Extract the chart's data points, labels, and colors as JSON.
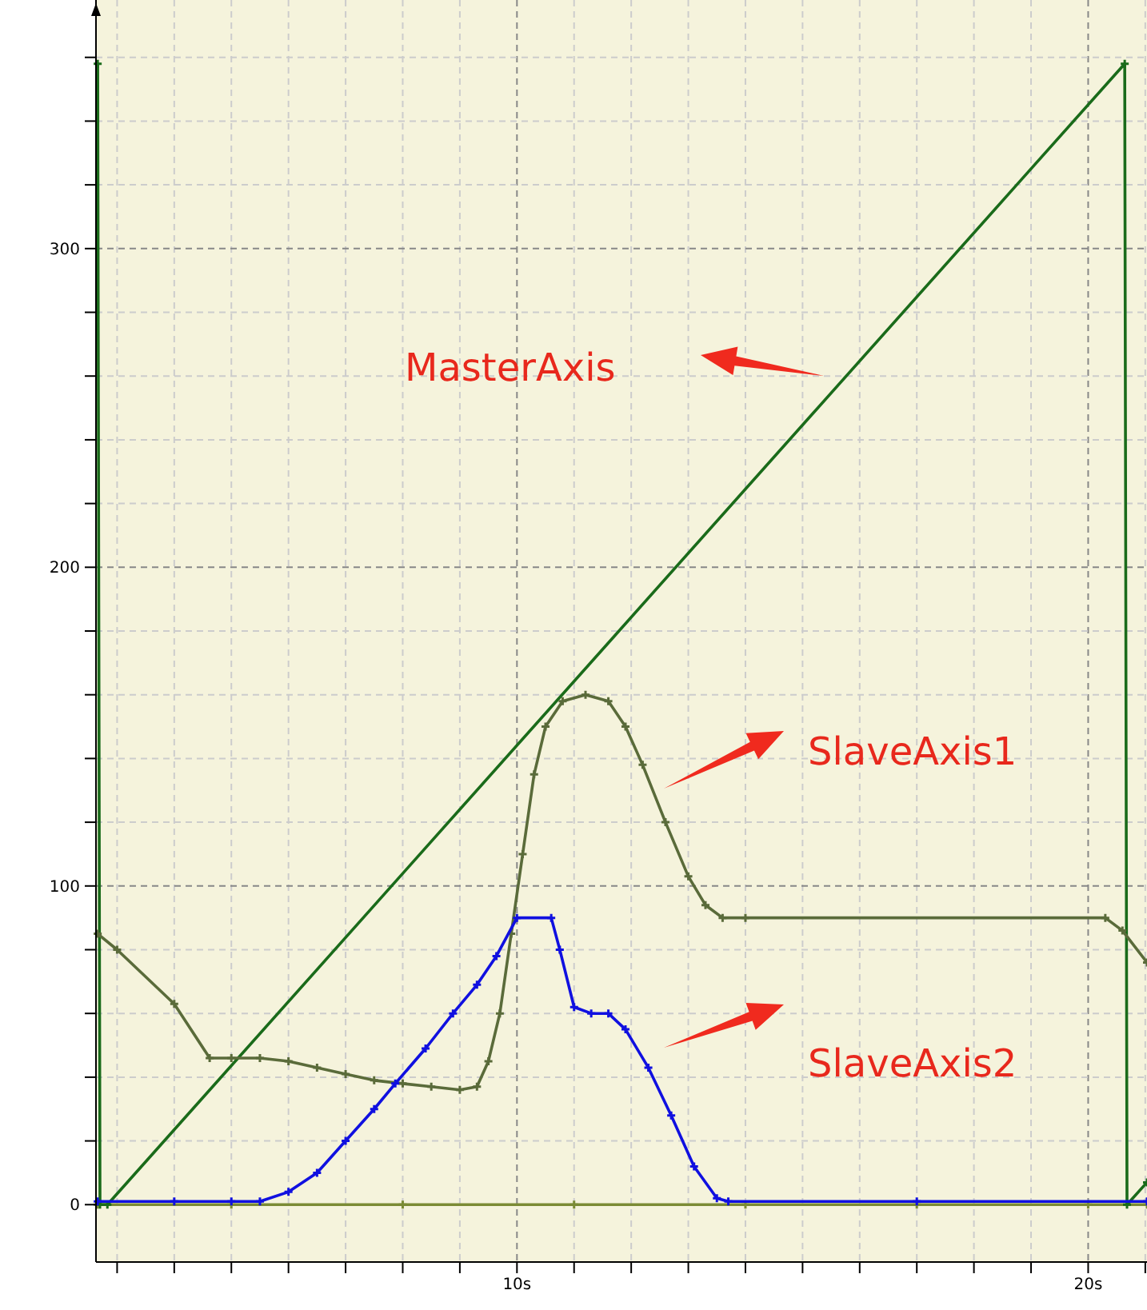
{
  "chart_data": {
    "type": "line",
    "xlim": [
      2.63,
      21.03
    ],
    "ylim": [
      -18,
      378
    ],
    "xticks": [
      {
        "value": 3,
        "label": null
      },
      {
        "value": 4,
        "label": null
      },
      {
        "value": 5,
        "label": null
      },
      {
        "value": 6,
        "label": null
      },
      {
        "value": 7,
        "label": null
      },
      {
        "value": 8,
        "label": null
      },
      {
        "value": 9,
        "label": null
      },
      {
        "value": 10,
        "label": "10s"
      },
      {
        "value": 11,
        "label": null
      },
      {
        "value": 12,
        "label": null
      },
      {
        "value": 13,
        "label": null
      },
      {
        "value": 14,
        "label": null
      },
      {
        "value": 15,
        "label": null
      },
      {
        "value": 16,
        "label": null
      },
      {
        "value": 17,
        "label": null
      },
      {
        "value": 18,
        "label": null
      },
      {
        "value": 19,
        "label": null
      },
      {
        "value": 20,
        "label": "20s"
      },
      {
        "value": 21,
        "label": null
      }
    ],
    "yticks": [
      0,
      {
        "value": 20,
        "label": null
      },
      {
        "value": 40,
        "label": null
      },
      {
        "value": 60,
        "label": null
      },
      {
        "value": 80,
        "label": null
      },
      100,
      {
        "value": 120,
        "label": null
      },
      {
        "value": 140,
        "label": null
      },
      {
        "value": 160,
        "label": null
      },
      {
        "value": 180,
        "label": null
      },
      200,
      {
        "value": 220,
        "label": null
      },
      {
        "value": 240,
        "label": null
      },
      {
        "value": 260,
        "label": null
      },
      {
        "value": 280,
        "label": null
      },
      300,
      {
        "value": 320,
        "label": null
      },
      {
        "value": 340,
        "label": null
      },
      {
        "value": 360,
        "label": null
      }
    ],
    "grid": true,
    "marker": "cross",
    "line_style": "solid",
    "annotations": [
      "MasterAxis",
      "SlaveAxis1",
      "SlaveAxis2"
    ],
    "series": [
      {
        "name": null,
        "color": "#7b8b35",
        "x": [
          2.66,
          5,
          8,
          11,
          14,
          17,
          20,
          21.03
        ],
        "values": [
          0,
          0,
          0,
          0,
          0,
          0,
          0,
          0
        ]
      },
      {
        "color": "#1a6b1a",
        "x": [
          2.66,
          2.7,
          2.83,
          20.64,
          20.68,
          21.03
        ],
        "values": [
          358,
          0,
          0,
          358,
          0,
          7
        ]
      },
      {
        "color": "#5a6b3a",
        "x": [
          2.66,
          3.0,
          4.0,
          4.62,
          5.0,
          5.5,
          6.0,
          6.5,
          7.0,
          7.5,
          8.0,
          8.5,
          9.0,
          9.3,
          9.5,
          9.7,
          9.9,
          10.1,
          10.3,
          10.5,
          10.8,
          11.2,
          11.6,
          11.9,
          12.2,
          12.6,
          13.0,
          13.3,
          13.6,
          14.0,
          20.3,
          20.6,
          21.03
        ],
        "values": [
          85,
          80,
          63,
          46,
          46,
          46,
          45,
          43,
          41,
          39,
          38,
          37,
          36,
          37,
          45,
          60,
          85,
          110,
          135,
          150,
          158,
          160,
          158,
          150,
          138,
          120,
          103,
          94,
          90,
          90,
          90,
          86,
          76
        ]
      },
      {
        "color": "#1010e0",
        "x": [
          2.66,
          4,
          5,
          5.5,
          6,
          6.5,
          7,
          7.5,
          7.87,
          8.4,
          8.88,
          9.3,
          9.64,
          10,
          10.6,
          10.75,
          11,
          11.3,
          11.6,
          11.9,
          12.3,
          12.7,
          13.1,
          13.5,
          13.7,
          17,
          21.03
        ],
        "values": [
          1,
          1,
          1,
          1,
          4,
          10,
          20,
          30,
          38,
          49,
          60,
          69,
          78,
          90,
          90,
          80,
          62,
          60,
          60,
          55,
          43,
          28,
          12,
          2,
          1,
          1,
          1
        ]
      }
    ]
  }
}
